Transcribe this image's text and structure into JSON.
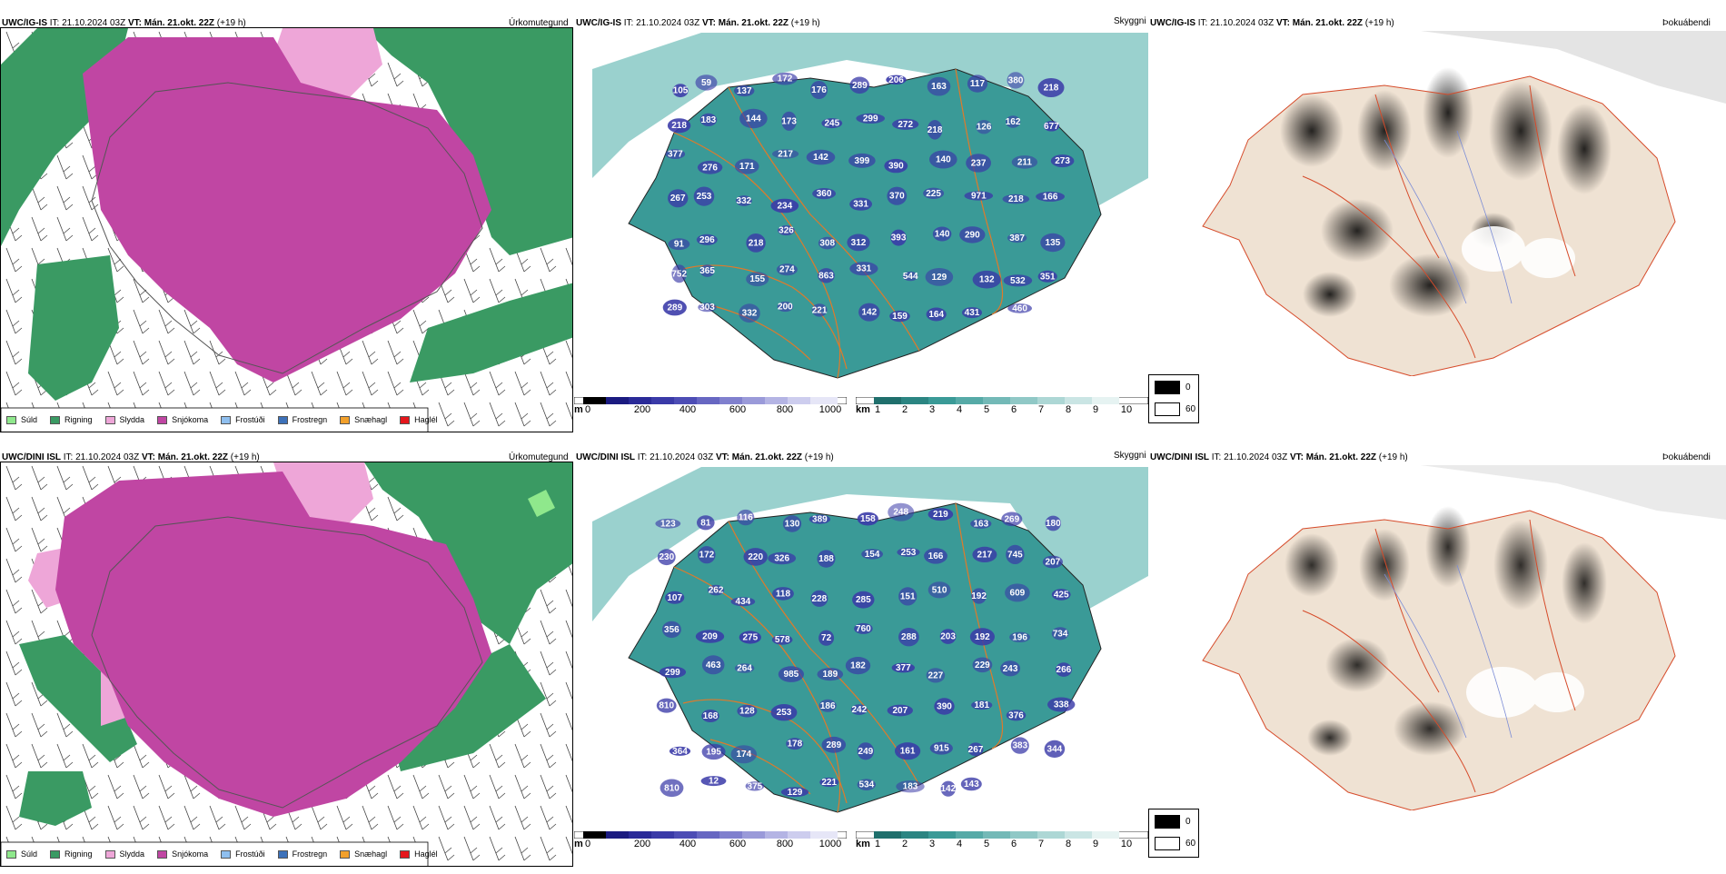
{
  "rows": [
    {
      "model": "UWC/IG-IS",
      "it_label": "IT:",
      "it_value": "21.10.2024 03Z",
      "vt_label": "VT:",
      "vt_value": "Mán. 21.okt. 22Z",
      "lead": "(+19 h)",
      "precip_title": "Úrkomutegund",
      "vis_title": "Skyggni",
      "fog_title": "Þokuábendi",
      "cloud_numbers": [
        "105",
        "59",
        "137",
        "172",
        "176",
        "289",
        "206",
        "163",
        "117",
        "380",
        "218",
        "218",
        "183",
        "144",
        "173",
        "245",
        "299",
        "272",
        "218",
        "126",
        "162",
        "677",
        "377",
        "276",
        "171",
        "217",
        "142",
        "399",
        "390",
        "140",
        "237",
        "211",
        "273",
        "267",
        "253",
        "332",
        "234",
        "360",
        "331",
        "370",
        "225",
        "971",
        "218",
        "166",
        "91",
        "296",
        "218",
        "326",
        "308",
        "312",
        "393",
        "140",
        "290",
        "387",
        "135",
        "752",
        "365",
        "155",
        "274",
        "863",
        "331",
        "544",
        "129",
        "132",
        "532",
        "351",
        "289",
        "303",
        "332",
        "200",
        "221",
        "142",
        "159",
        "164",
        "431",
        "460"
      ],
      "nobreak": ""
    },
    {
      "model": "UWC/DINI ISL",
      "it_label": "IT:",
      "it_value": "21.10.2024 03Z",
      "vt_label": "VT:",
      "vt_value": "Mán. 21.okt. 22Z",
      "lead": "(+19 h)",
      "precip_title": "Úrkomutegund",
      "vis_title": "Skyggni",
      "fog_title": "Þokuábendi",
      "cloud_numbers": [
        "123",
        "81",
        "116",
        "130",
        "389",
        "158",
        "248",
        "219",
        "163",
        "269",
        "180",
        "230",
        "172",
        "220",
        "326",
        "188",
        "154",
        "253",
        "166",
        "217",
        "745",
        "207",
        "107",
        "262",
        "434",
        "118",
        "228",
        "285",
        "151",
        "510",
        "192",
        "609",
        "425",
        "356",
        "209",
        "275",
        "578",
        "72",
        "760",
        "288",
        "203",
        "192",
        "196",
        "734",
        "299",
        "463",
        "264",
        "985",
        "189",
        "182",
        "377",
        "227",
        "229",
        "243",
        "266",
        "810",
        "168",
        "128",
        "253",
        "186",
        "242",
        "207",
        "390",
        "181",
        "376",
        "338",
        "364",
        "195",
        "174",
        "178",
        "289",
        "249",
        "161",
        "915",
        "267",
        "383",
        "344",
        "810",
        "12",
        "375",
        "129",
        "221",
        "534",
        "183",
        "142",
        "143"
      ]
    }
  ],
  "precip_legend": [
    {
      "label": "Súld",
      "color": "#8fe88c"
    },
    {
      "label": "Rigning",
      "color": "#3a9a63"
    },
    {
      "label": "Slydda",
      "color": "#eea6d8"
    },
    {
      "label": "Snjókoma",
      "color": "#c046a3"
    },
    {
      "label": "Frostúði",
      "color": "#8fbfef"
    },
    {
      "label": "Frostregn",
      "color": "#3d71b9"
    },
    {
      "label": "Snæhagl",
      "color": "#f2a02b"
    },
    {
      "label": "Haglél",
      "color": "#e5161c"
    }
  ],
  "cloud_bar": {
    "unit": "m",
    "ticks": [
      "0",
      "200",
      "400",
      "600",
      "800",
      "1000"
    ]
  },
  "vis_bar": {
    "unit": "km",
    "ticks": [
      "1",
      "2",
      "3",
      "4",
      "5",
      "6",
      "7",
      "8",
      "9",
      "10"
    ]
  },
  "fog_legend": {
    "high": "0",
    "low": "60"
  },
  "colors": {
    "snow": "#c046a3",
    "rain": "#3a9a63",
    "sleet": "#eea6d8",
    "drizzle": "#8fe88c",
    "teal": "#3a9a97",
    "cloud": "#3a3aa8",
    "roads": "#e07a2a"
  }
}
